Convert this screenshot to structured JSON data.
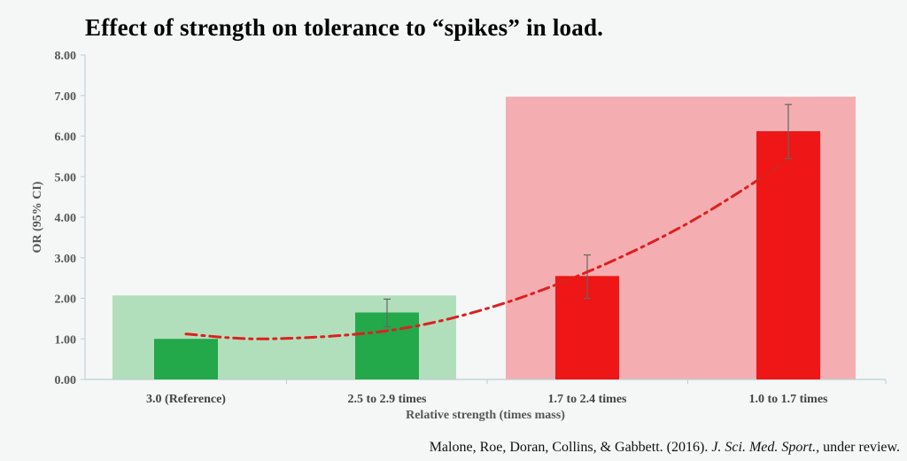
{
  "chart_data": {
    "type": "bar",
    "title": "Effect of strength on tolerance to “spikes” in load.",
    "xlabel": "Relative strength (times mass)",
    "ylabel": "OR (95% CI)",
    "ylim": [
      0,
      8
    ],
    "yticks": [
      "0.00",
      "1.00",
      "2.00",
      "3.00",
      "4.00",
      "5.00",
      "6.00",
      "7.00",
      "8.00"
    ],
    "categories": [
      "3.0 (Reference)",
      "2.5 to 2.9 times",
      "1.7 to 2.4 times",
      "1.0 to 1.7 times"
    ],
    "values": [
      1.0,
      1.65,
      2.55,
      6.12
    ],
    "ci_low": [
      null,
      1.3,
      2.0,
      5.45
    ],
    "ci_high": [
      null,
      1.98,
      3.07,
      6.78
    ],
    "bar_colors": [
      "#23a84a",
      "#23a84a",
      "#ee1616",
      "#ee1616"
    ],
    "highlight_regions": [
      {
        "name": "green-region",
        "categories": [
          0,
          1
        ],
        "y_top": 2.07,
        "color": "#b2dfbb"
      },
      {
        "name": "red-region",
        "categories": [
          2,
          3
        ],
        "y_top": 6.97,
        "color": "#f4aeb1"
      }
    ],
    "trendline": {
      "style": "dash-dot",
      "color": "#dd2020",
      "points": [
        [
          0,
          1.12
        ],
        [
          0.4,
          1.0
        ],
        [
          1,
          1.2
        ],
        [
          1.5,
          1.75
        ],
        [
          2,
          2.65
        ],
        [
          2.5,
          3.85
        ],
        [
          3,
          5.4
        ]
      ]
    }
  },
  "citation": {
    "prefix": "Malone, Roe, Doran, Collins, & Gabbett. (2016). ",
    "journal": "J. Sci. Med. Sport.,",
    "suffix": " under review."
  }
}
